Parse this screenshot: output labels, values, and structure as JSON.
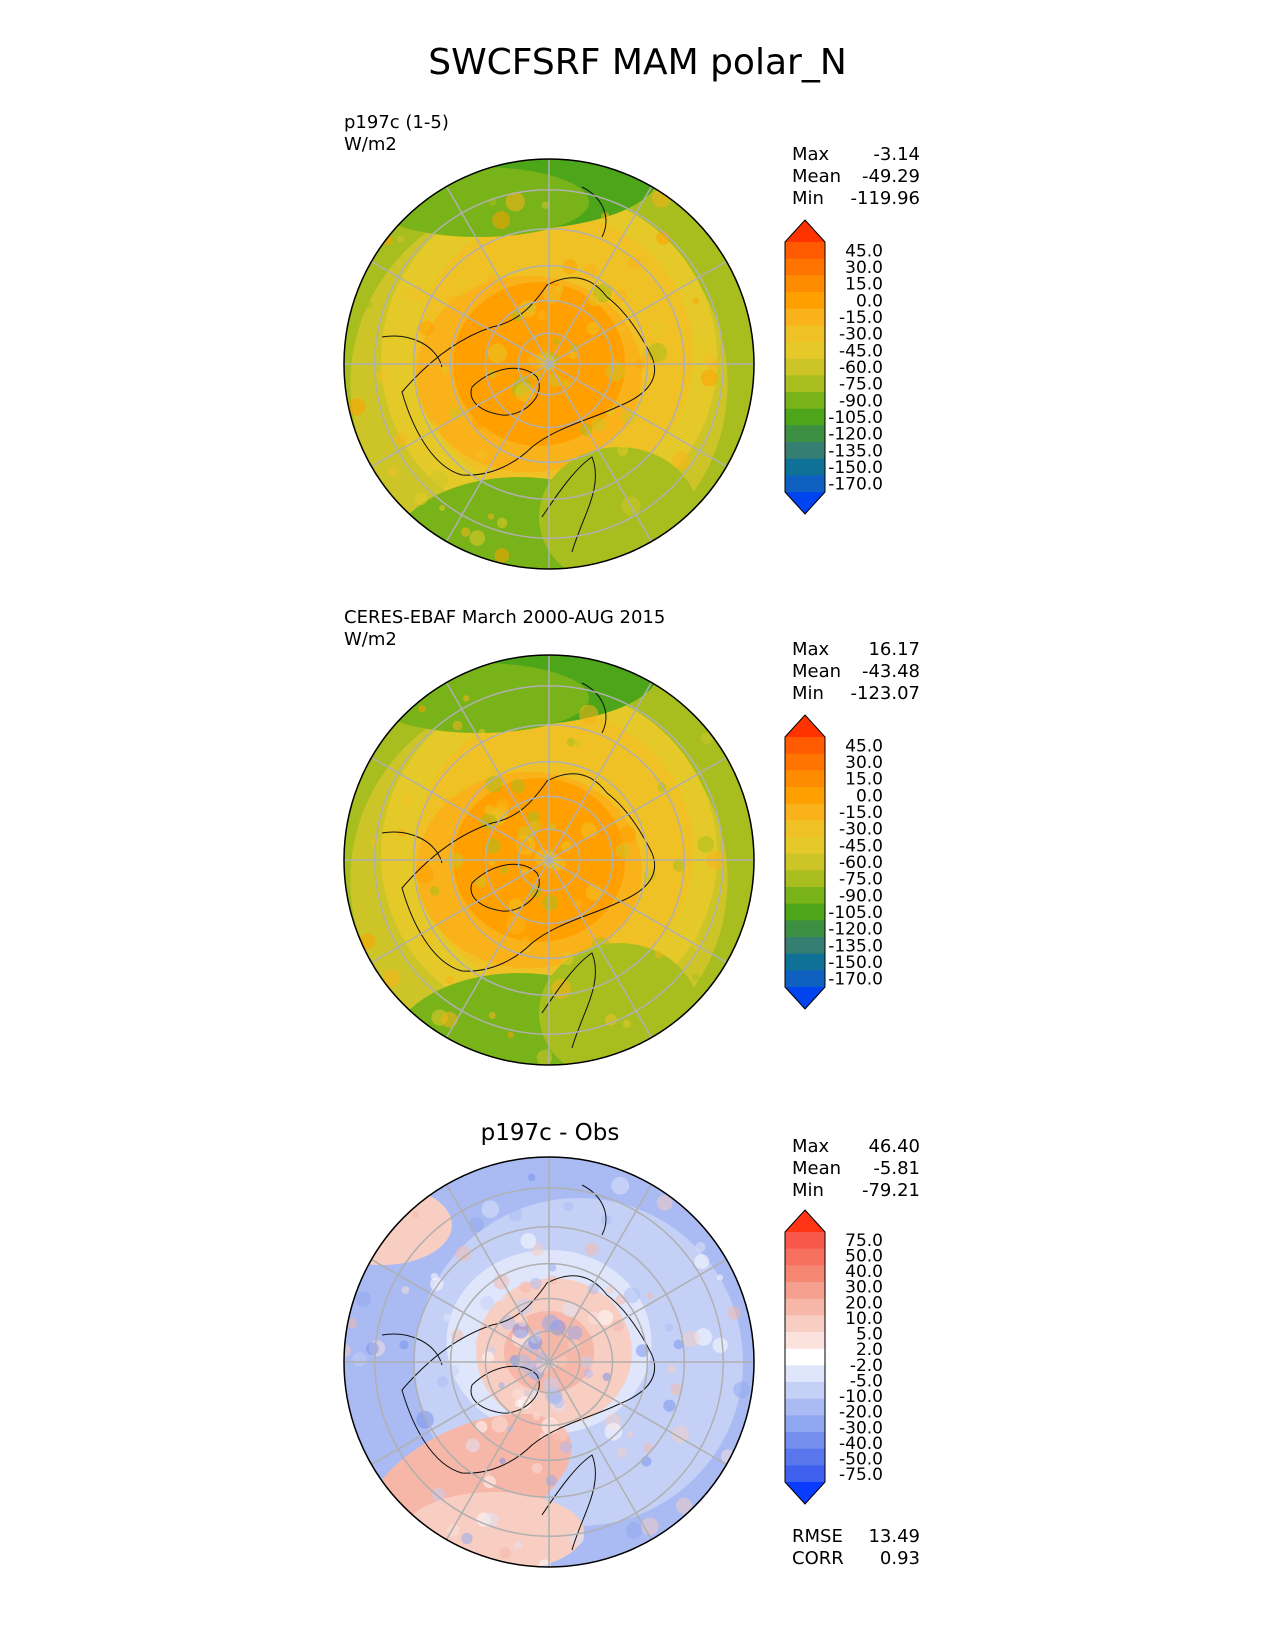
{
  "figure_title": "SWCFSRF MAM polar_N",
  "panels": [
    {
      "label_line1": "p197c (1-5)",
      "label_line2": "W/m2",
      "stats": [
        {
          "name": "Max",
          "value": "-3.14"
        },
        {
          "name": "Mean",
          "value": "-49.29"
        },
        {
          "name": "Min",
          "value": "-119.96"
        }
      ]
    },
    {
      "label_line1": "CERES-EBAF March 2000-AUG 2015",
      "label_line2": "W/m2",
      "stats": [
        {
          "name": "Max",
          "value": "16.17"
        },
        {
          "name": "Mean",
          "value": "-43.48"
        },
        {
          "name": "Min",
          "value": "-123.07"
        }
      ]
    },
    {
      "title": "p197c - Obs",
      "stats": [
        {
          "name": "Max",
          "value": "46.40"
        },
        {
          "name": "Mean",
          "value": "-5.81"
        },
        {
          "name": "Min",
          "value": "-79.21"
        }
      ],
      "footer_stats": [
        {
          "name": "RMSE",
          "value": "13.49"
        },
        {
          "name": "CORR",
          "value": "0.93"
        }
      ]
    }
  ],
  "chart_data": [
    {
      "type": "heatmap",
      "projection": "north polar stereographic",
      "colorbar": {
        "ticks": [
          "45.0",
          "30.0",
          "15.0",
          "0.0",
          "-15.0",
          "-30.0",
          "-45.0",
          "-60.0",
          "-75.0",
          "-90.0",
          "-105.0",
          "-120.0",
          "-135.0",
          "-150.0",
          "-170.0"
        ],
        "colors": [
          "#ff3300",
          "#ff5a00",
          "#ff7400",
          "#ff8c00",
          "#ffa000",
          "#f9b21a",
          "#f0c125",
          "#e5c928",
          "#cdc528",
          "#a7be1e",
          "#79b31a",
          "#4da519",
          "#3d8f41",
          "#347e72",
          "#0f7196",
          "#0f60c0",
          "#0044f0"
        ],
        "extend": "both"
      }
    },
    {
      "type": "heatmap",
      "projection": "north polar stereographic",
      "colorbar": {
        "ticks": [
          "45.0",
          "30.0",
          "15.0",
          "0.0",
          "-15.0",
          "-30.0",
          "-45.0",
          "-60.0",
          "-75.0",
          "-90.0",
          "-105.0",
          "-120.0",
          "-135.0",
          "-150.0",
          "-170.0"
        ],
        "colors": [
          "#ff3300",
          "#ff5a00",
          "#ff7400",
          "#ff8c00",
          "#ffa000",
          "#f9b21a",
          "#f0c125",
          "#e5c928",
          "#cdc528",
          "#a7be1e",
          "#79b31a",
          "#4da519",
          "#3d8f41",
          "#347e72",
          "#0f7196",
          "#0f60c0",
          "#0044f0"
        ],
        "extend": "both"
      }
    },
    {
      "type": "heatmap",
      "projection": "north polar stereographic",
      "colorbar": {
        "ticks": [
          "75.0",
          "50.0",
          "40.0",
          "30.0",
          "20.0",
          "10.0",
          "5.0",
          "2.0",
          "-2.0",
          "-5.0",
          "-10.0",
          "-20.0",
          "-30.0",
          "-40.0",
          "-50.0",
          "-75.0"
        ],
        "colors": [
          "#ff3515",
          "#f8584a",
          "#f7705e",
          "#f58671",
          "#f5a08f",
          "#f6b7a8",
          "#f8cdc2",
          "#fbe2dc",
          "#ffffff",
          "#dfe5fa",
          "#c4d0f6",
          "#aabbf3",
          "#8fa7f0",
          "#748fee",
          "#5a78ed",
          "#3f5fef",
          "#0a3cff"
        ],
        "extend": "both"
      }
    }
  ]
}
